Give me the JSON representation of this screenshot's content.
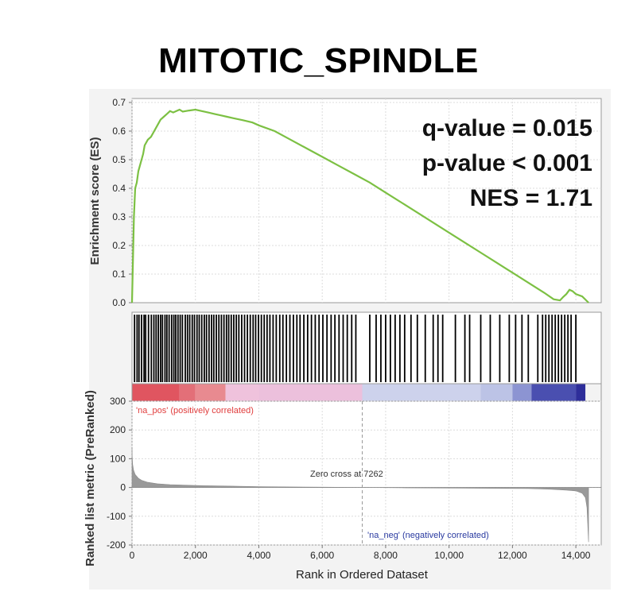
{
  "title": "MITOTIC_SPINDLE",
  "stats": {
    "q_value": "q-value = 0.015",
    "p_value": "p-value < 0.001",
    "nes": "NES = 1.71"
  },
  "chart_data": [
    {
      "type": "line",
      "name": "enrichment-score",
      "ylabel": "Enrichment score (ES)",
      "ylim": [
        0,
        0.7
      ],
      "yticks": [
        0.0,
        0.1,
        0.2,
        0.3,
        0.4,
        0.5,
        0.6,
        0.7
      ],
      "ytick_labels": [
        "0.0",
        "0.1",
        "0.2",
        "0.3",
        "0.4",
        "0.5",
        "0.6",
        "0.7"
      ],
      "xlim": [
        0,
        14800
      ],
      "line_color": "#7cc043",
      "x": [
        0,
        30,
        60,
        100,
        150,
        200,
        250,
        300,
        350,
        400,
        500,
        600,
        700,
        800,
        900,
        1000,
        1100,
        1200,
        1300,
        1400,
        1500,
        1600,
        1800,
        2000,
        2200,
        2400,
        2600,
        2800,
        3000,
        3200,
        3500,
        3800,
        4000,
        4500,
        5000,
        5500,
        6000,
        6500,
        7000,
        7500,
        8000,
        8500,
        9000,
        9500,
        10000,
        10500,
        11000,
        11500,
        12000,
        12500,
        13000,
        13300,
        13500,
        13600,
        13700,
        13800,
        13900,
        14000,
        14200,
        14400
      ],
      "y": [
        0.0,
        0.15,
        0.3,
        0.4,
        0.42,
        0.46,
        0.48,
        0.5,
        0.52,
        0.55,
        0.57,
        0.58,
        0.6,
        0.62,
        0.64,
        0.65,
        0.66,
        0.67,
        0.665,
        0.67,
        0.675,
        0.668,
        0.672,
        0.675,
        0.67,
        0.665,
        0.66,
        0.655,
        0.65,
        0.645,
        0.638,
        0.63,
        0.62,
        0.6,
        0.57,
        0.54,
        0.51,
        0.48,
        0.45,
        0.42,
        0.385,
        0.35,
        0.315,
        0.28,
        0.245,
        0.21,
        0.175,
        0.14,
        0.105,
        0.07,
        0.035,
        0.012,
        0.008,
        0.02,
        0.03,
        0.045,
        0.04,
        0.03,
        0.022,
        0.0
      ]
    },
    {
      "type": "barcode",
      "name": "gene-set-hits",
      "hit_positions": [
        80,
        160,
        220,
        300,
        380,
        430,
        520,
        610,
        690,
        760,
        830,
        900,
        960,
        1040,
        1100,
        1170,
        1250,
        1320,
        1380,
        1450,
        1520,
        1590,
        1680,
        1750,
        1820,
        1900,
        1970,
        2050,
        2120,
        2200,
        2280,
        2350,
        2430,
        2510,
        2580,
        2660,
        2740,
        2820,
        2900,
        2980,
        3050,
        3130,
        3210,
        3290,
        3370,
        3460,
        3550,
        3640,
        3730,
        3820,
        3900,
        3990,
        4080,
        4170,
        4260,
        4350,
        4450,
        4550,
        4660,
        4760,
        4870,
        4980,
        5090,
        5200,
        5300,
        5420,
        5540,
        5660,
        5780,
        5900,
        6020,
        6150,
        6280,
        6400,
        6530,
        6660,
        6790,
        6930,
        7060,
        7500,
        7700,
        7850,
        8000,
        8150,
        8300,
        8450,
        8600,
        8800,
        9000,
        9250,
        9500,
        9650,
        9800,
        10200,
        10500,
        10650,
        11000,
        11300,
        11600,
        11900,
        12100,
        12300,
        12500,
        12800,
        12950,
        13050,
        13150,
        13250,
        13350,
        13450,
        13550,
        13650,
        13750,
        13850,
        14000
      ]
    },
    {
      "type": "area",
      "name": "ranked-list-metric",
      "ylabel": "Ranked list metric (PreRanked)",
      "xlabel": "Rank in Ordered Dataset",
      "ylim": [
        -200,
        300
      ],
      "yticks": [
        300,
        200,
        100,
        0,
        -100,
        -200
      ],
      "ytick_labels": [
        "300",
        "200",
        "100",
        "0",
        "-100",
        "-200"
      ],
      "xlim": [
        0,
        14800
      ],
      "xticks": [
        0,
        2000,
        4000,
        6000,
        8000,
        10000,
        12000,
        14000
      ],
      "xtick_labels": [
        "0",
        "2,000",
        "4,000",
        "6,000",
        "8,000",
        "10,000",
        "12,000",
        "14,000"
      ],
      "x": [
        0,
        5,
        20,
        50,
        100,
        200,
        300,
        500,
        800,
        1200,
        2000,
        3000,
        4000,
        5000,
        6000,
        7262,
        8500,
        10000,
        11500,
        12500,
        13200,
        13700,
        14000,
        14200,
        14300,
        14350,
        14400
      ],
      "y": [
        140,
        110,
        80,
        60,
        45,
        32,
        25,
        18,
        13,
        10,
        7,
        5,
        3,
        2,
        1,
        0,
        -1,
        -2,
        -3,
        -4,
        -6,
        -9,
        -12,
        -20,
        -35,
        -70,
        -190
      ],
      "zero_cross_label": "Zero cross at 7262",
      "zero_cross": 7262,
      "pos_label": "'na_pos' (positively correlated)",
      "neg_label": "'na_neg' (negatively correlated)",
      "pos_color": "#e03c3c",
      "neg_color": "#2a3aa0",
      "fill_color": "#999999"
    },
    {
      "type": "heatmap",
      "name": "ranking-color-bar",
      "segments": [
        {
          "from": 0,
          "to": 1500,
          "color": "#e05560"
        },
        {
          "from": 1500,
          "to": 2000,
          "color": "#e36f78"
        },
        {
          "from": 2000,
          "to": 2950,
          "color": "#e88a90"
        },
        {
          "from": 2950,
          "to": 4000,
          "color": "#efc2dc"
        },
        {
          "from": 4000,
          "to": 7262,
          "color": "#ecc0dc"
        },
        {
          "from": 7262,
          "to": 11000,
          "color": "#cdd2ec"
        },
        {
          "from": 11000,
          "to": 12000,
          "color": "#bcc3e6"
        },
        {
          "from": 12000,
          "to": 12600,
          "color": "#8c94d2"
        },
        {
          "from": 12600,
          "to": 14000,
          "color": "#4a4fb0"
        },
        {
          "from": 14000,
          "to": 14300,
          "color": "#2e2e9a"
        }
      ]
    }
  ]
}
